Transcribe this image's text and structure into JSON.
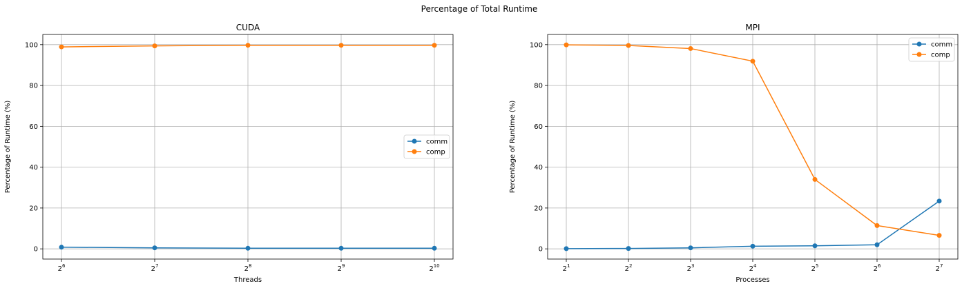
{
  "figure": {
    "suptitle": "Percentage of Total Runtime"
  },
  "chart_data": [
    {
      "type": "line",
      "title": "CUDA",
      "xlabel": "Threads",
      "ylabel": "Percentage of Runtime (%)",
      "x_scale": "log2",
      "x": [
        64,
        128,
        256,
        512,
        1024
      ],
      "x_tick_labels": [
        {
          "base": "2",
          "exp": "6"
        },
        {
          "base": "2",
          "exp": "7"
        },
        {
          "base": "2",
          "exp": "8"
        },
        {
          "base": "2",
          "exp": "9"
        },
        {
          "base": "2",
          "exp": "10"
        }
      ],
      "ylim": [
        -5,
        105
      ],
      "y_ticks": [
        0,
        20,
        40,
        60,
        80,
        100
      ],
      "grid": true,
      "legend_position": "center-right",
      "series": [
        {
          "name": "comm",
          "color": "#1f77b4",
          "values": [
            0.8,
            0.5,
            0.3,
            0.3,
            0.3
          ]
        },
        {
          "name": "comp",
          "color": "#ff7f0e",
          "values": [
            98.9,
            99.4,
            99.7,
            99.7,
            99.7
          ]
        }
      ]
    },
    {
      "type": "line",
      "title": "MPI",
      "xlabel": "Processes",
      "ylabel": "Percentage of Runtime (%)",
      "x_scale": "log2",
      "x": [
        2,
        4,
        8,
        16,
        32,
        64,
        128
      ],
      "x_tick_labels": [
        {
          "base": "2",
          "exp": "1"
        },
        {
          "base": "2",
          "exp": "2"
        },
        {
          "base": "2",
          "exp": "3"
        },
        {
          "base": "2",
          "exp": "4"
        },
        {
          "base": "2",
          "exp": "5"
        },
        {
          "base": "2",
          "exp": "6"
        },
        {
          "base": "2",
          "exp": "7"
        }
      ],
      "ylim": [
        -5,
        105
      ],
      "y_ticks": [
        0,
        20,
        40,
        60,
        80,
        100
      ],
      "grid": true,
      "legend_position": "top-right",
      "series": [
        {
          "name": "comm",
          "color": "#1f77b4",
          "values": [
            0.1,
            0.2,
            0.5,
            1.3,
            1.5,
            2.0,
            23.4
          ]
        },
        {
          "name": "comp",
          "color": "#ff7f0e",
          "values": [
            99.9,
            99.6,
            98.1,
            91.9,
            34.0,
            11.4,
            6.6
          ]
        }
      ]
    }
  ]
}
